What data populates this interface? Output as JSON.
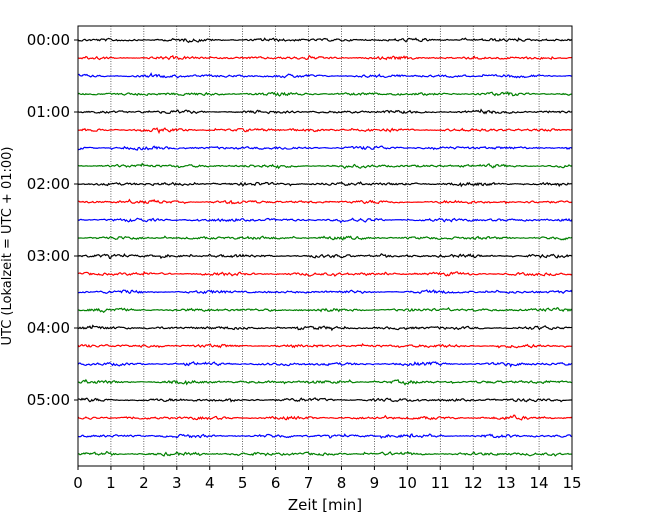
{
  "chart_data": {
    "type": "line",
    "title": "",
    "xlabel": "Zeit  [min]",
    "ylabel": "UTC (Lokalzeit = UTC + 01:00)",
    "xlim": [
      0,
      15
    ],
    "x_ticks": [
      "0",
      "1",
      "2",
      "3",
      "4",
      "5",
      "6",
      "7",
      "8",
      "9",
      "10",
      "11",
      "12",
      "13",
      "14",
      "15"
    ],
    "y_ticks": [
      "00:00",
      "01:00",
      "02:00",
      "03:00",
      "04:00",
      "05:00"
    ],
    "trace_interval_minutes": 15,
    "trace_count": 24,
    "trace_colors": [
      "#000000",
      "#ff0000",
      "#0000ff",
      "#008000"
    ],
    "grid": "vertical dotted at each minute",
    "legend": "none",
    "series_description": "seismogram helicorder; each horizontal trace spans 15 minutes, traces stacked from 00:00 UTC downward"
  }
}
